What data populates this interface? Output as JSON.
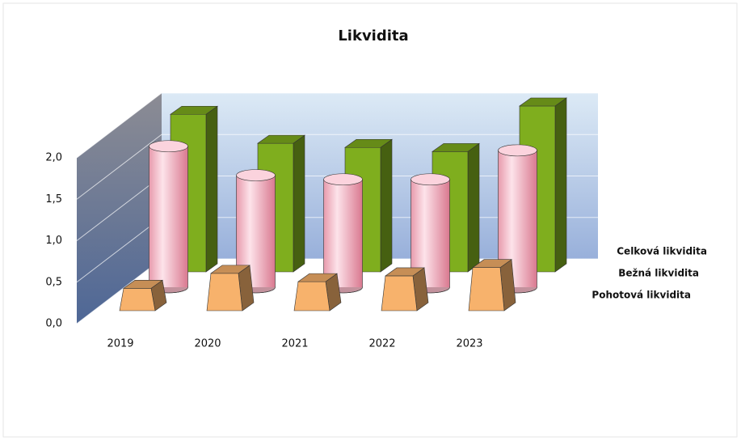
{
  "chart_data": {
    "type": "bar3d",
    "title": "Likvidita",
    "categories": [
      "2019",
      "2020",
      "2021",
      "2022",
      "2023"
    ],
    "series": [
      {
        "name": "Celková likvidita",
        "color": "#7fae1e",
        "values": [
          1.9,
          1.55,
          1.5,
          1.45,
          2.0
        ]
      },
      {
        "name": "Bežná likvidita",
        "color": "#f4b6c4",
        "values": [
          1.7,
          1.35,
          1.3,
          1.3,
          1.65
        ]
      },
      {
        "name": "Pohotová likvidita",
        "color": "#f7b26c",
        "values": [
          0.27,
          0.45,
          0.35,
          0.42,
          0.52
        ]
      }
    ],
    "ylim": [
      0,
      2.0
    ],
    "yticks": [
      {
        "value": 0,
        "label": "0,0"
      },
      {
        "value": 0.5,
        "label": "0,5"
      },
      {
        "value": 1.0,
        "label": "1,0"
      },
      {
        "value": 1.5,
        "label": "1,5"
      },
      {
        "value": 2.0,
        "label": "2,0"
      }
    ],
    "grid": true
  }
}
